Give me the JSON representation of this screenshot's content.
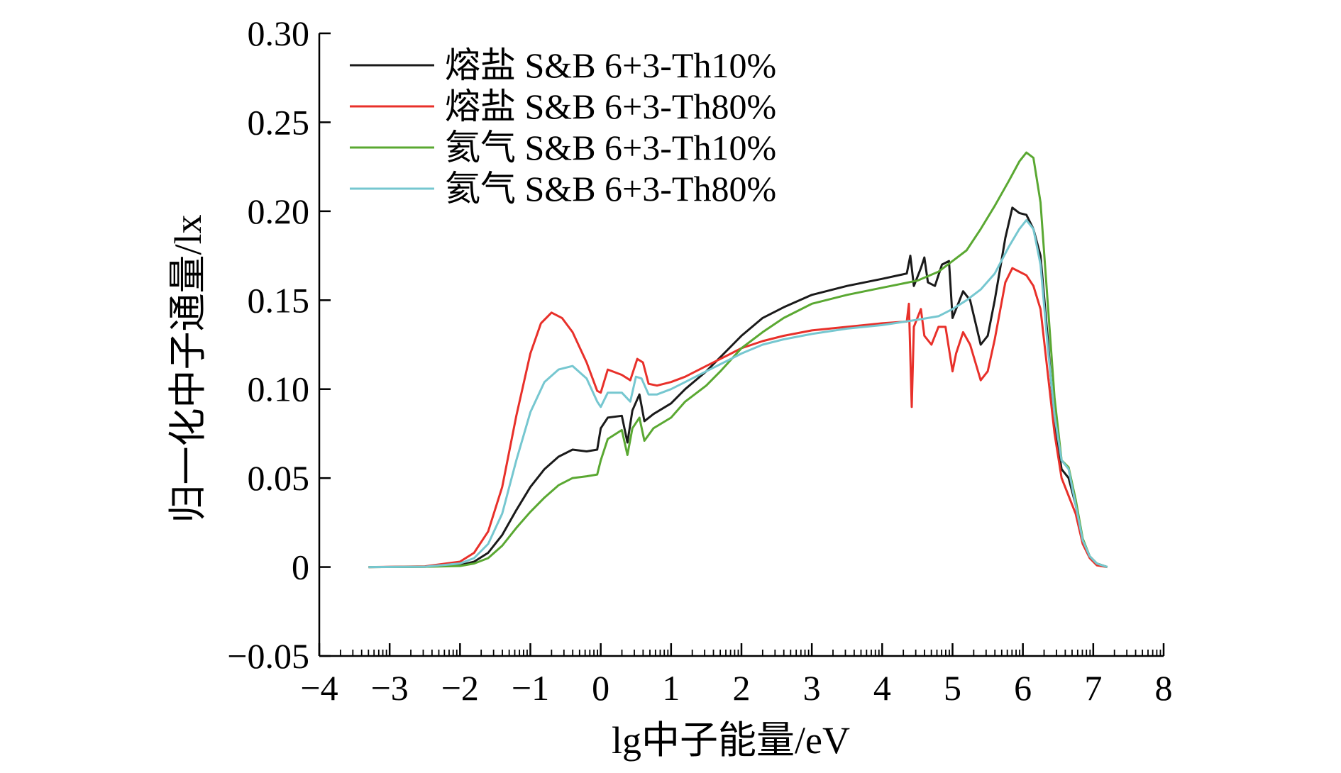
{
  "chart_data": {
    "type": "line",
    "title": "",
    "xlabel": "lg中子能量/eV",
    "ylabel": "归一化中子通量/lx",
    "xlim": [
      -4,
      8
    ],
    "ylim": [
      -0.05,
      0.3
    ],
    "xticks": [
      -4,
      -3,
      -2,
      -1,
      0,
      1,
      2,
      3,
      4,
      5,
      6,
      7,
      8
    ],
    "xtick_labels": [
      "−4",
      "−3",
      "−2",
      "−1",
      "0",
      "1",
      "2",
      "3",
      "4",
      "5",
      "6",
      "7",
      "8"
    ],
    "yticks": [
      -0.05,
      0,
      0.05,
      0.1,
      0.15,
      0.2,
      0.25,
      0.3
    ],
    "ytick_labels": [
      "−0.05",
      "0",
      "0.05",
      "0.10",
      "0.15",
      "0.20",
      "0.25",
      "0.30"
    ],
    "grid": false,
    "legend_position": "top-left",
    "series": [
      {
        "name": "熔盐 S&B 6+3-Th10%",
        "color": "#1a1a1a",
        "points": [
          [
            -3.3,
            0
          ],
          [
            -2.5,
            0.0002
          ],
          [
            -2.0,
            0.001
          ],
          [
            -1.8,
            0.003
          ],
          [
            -1.6,
            0.008
          ],
          [
            -1.4,
            0.018
          ],
          [
            -1.2,
            0.032
          ],
          [
            -1.0,
            0.045
          ],
          [
            -0.8,
            0.055
          ],
          [
            -0.6,
            0.062
          ],
          [
            -0.4,
            0.066
          ],
          [
            -0.2,
            0.065
          ],
          [
            -0.05,
            0.066
          ],
          [
            0.0,
            0.078
          ],
          [
            0.1,
            0.084
          ],
          [
            0.3,
            0.085
          ],
          [
            0.38,
            0.07
          ],
          [
            0.45,
            0.088
          ],
          [
            0.55,
            0.097
          ],
          [
            0.62,
            0.082
          ],
          [
            0.75,
            0.086
          ],
          [
            1.0,
            0.092
          ],
          [
            1.2,
            0.1
          ],
          [
            1.5,
            0.11
          ],
          [
            1.7,
            0.118
          ],
          [
            2.0,
            0.13
          ],
          [
            2.3,
            0.14
          ],
          [
            2.6,
            0.146
          ],
          [
            3.0,
            0.153
          ],
          [
            3.5,
            0.158
          ],
          [
            4.0,
            0.162
          ],
          [
            4.35,
            0.165
          ],
          [
            4.4,
            0.175
          ],
          [
            4.45,
            0.158
          ],
          [
            4.55,
            0.168
          ],
          [
            4.6,
            0.174
          ],
          [
            4.65,
            0.16
          ],
          [
            4.75,
            0.158
          ],
          [
            4.85,
            0.17
          ],
          [
            4.95,
            0.172
          ],
          [
            5.0,
            0.14
          ],
          [
            5.05,
            0.145
          ],
          [
            5.15,
            0.155
          ],
          [
            5.25,
            0.15
          ],
          [
            5.4,
            0.125
          ],
          [
            5.5,
            0.13
          ],
          [
            5.6,
            0.15
          ],
          [
            5.75,
            0.185
          ],
          [
            5.85,
            0.202
          ],
          [
            5.95,
            0.199
          ],
          [
            6.05,
            0.198
          ],
          [
            6.15,
            0.19
          ],
          [
            6.25,
            0.175
          ],
          [
            6.35,
            0.13
          ],
          [
            6.45,
            0.08
          ],
          [
            6.55,
            0.055
          ],
          [
            6.65,
            0.05
          ],
          [
            6.75,
            0.035
          ],
          [
            6.85,
            0.015
          ],
          [
            6.95,
            0.006
          ],
          [
            7.05,
            0.002
          ],
          [
            7.2,
            0
          ]
        ]
      },
      {
        "name": "熔盐 S&B 6+3-Th80%",
        "color": "#e8302a",
        "points": [
          [
            -3.3,
            0
          ],
          [
            -2.5,
            0.0004
          ],
          [
            -2.0,
            0.003
          ],
          [
            -1.8,
            0.008
          ],
          [
            -1.6,
            0.02
          ],
          [
            -1.4,
            0.045
          ],
          [
            -1.2,
            0.085
          ],
          [
            -1.0,
            0.12
          ],
          [
            -0.85,
            0.137
          ],
          [
            -0.7,
            0.143
          ],
          [
            -0.55,
            0.14
          ],
          [
            -0.4,
            0.132
          ],
          [
            -0.2,
            0.115
          ],
          [
            -0.05,
            0.099
          ],
          [
            0.0,
            0.098
          ],
          [
            0.1,
            0.111
          ],
          [
            0.3,
            0.108
          ],
          [
            0.42,
            0.105
          ],
          [
            0.52,
            0.117
          ],
          [
            0.6,
            0.115
          ],
          [
            0.68,
            0.103
          ],
          [
            0.8,
            0.102
          ],
          [
            1.0,
            0.104
          ],
          [
            1.2,
            0.107
          ],
          [
            1.5,
            0.113
          ],
          [
            1.8,
            0.119
          ],
          [
            2.0,
            0.123
          ],
          [
            2.3,
            0.127
          ],
          [
            2.6,
            0.13
          ],
          [
            3.0,
            0.133
          ],
          [
            3.5,
            0.135
          ],
          [
            4.0,
            0.137
          ],
          [
            4.35,
            0.138
          ],
          [
            4.38,
            0.148
          ],
          [
            4.42,
            0.09
          ],
          [
            4.45,
            0.135
          ],
          [
            4.55,
            0.145
          ],
          [
            4.6,
            0.13
          ],
          [
            4.7,
            0.125
          ],
          [
            4.8,
            0.135
          ],
          [
            4.9,
            0.135
          ],
          [
            5.0,
            0.11
          ],
          [
            5.05,
            0.12
          ],
          [
            5.15,
            0.132
          ],
          [
            5.25,
            0.125
          ],
          [
            5.4,
            0.105
          ],
          [
            5.5,
            0.11
          ],
          [
            5.6,
            0.128
          ],
          [
            5.75,
            0.16
          ],
          [
            5.85,
            0.168
          ],
          [
            5.95,
            0.166
          ],
          [
            6.05,
            0.164
          ],
          [
            6.15,
            0.158
          ],
          [
            6.25,
            0.145
          ],
          [
            6.35,
            0.11
          ],
          [
            6.45,
            0.075
          ],
          [
            6.55,
            0.05
          ],
          [
            6.65,
            0.04
          ],
          [
            6.75,
            0.03
          ],
          [
            6.85,
            0.013
          ],
          [
            6.95,
            0.005
          ],
          [
            7.05,
            0.001
          ],
          [
            7.2,
            0
          ]
        ]
      },
      {
        "name": "氦气 S&B 6+3-Th10%",
        "color": "#5aa832",
        "points": [
          [
            -3.3,
            0
          ],
          [
            -2.5,
            0.0001
          ],
          [
            -2.0,
            0.0006
          ],
          [
            -1.8,
            0.002
          ],
          [
            -1.6,
            0.005
          ],
          [
            -1.4,
            0.012
          ],
          [
            -1.2,
            0.022
          ],
          [
            -1.0,
            0.031
          ],
          [
            -0.8,
            0.039
          ],
          [
            -0.6,
            0.046
          ],
          [
            -0.4,
            0.05
          ],
          [
            -0.2,
            0.051
          ],
          [
            -0.05,
            0.052
          ],
          [
            0.0,
            0.06
          ],
          [
            0.1,
            0.072
          ],
          [
            0.3,
            0.077
          ],
          [
            0.38,
            0.063
          ],
          [
            0.45,
            0.078
          ],
          [
            0.55,
            0.084
          ],
          [
            0.62,
            0.071
          ],
          [
            0.75,
            0.078
          ],
          [
            1.0,
            0.084
          ],
          [
            1.2,
            0.093
          ],
          [
            1.5,
            0.102
          ],
          [
            1.7,
            0.11
          ],
          [
            2.0,
            0.123
          ],
          [
            2.3,
            0.132
          ],
          [
            2.6,
            0.14
          ],
          [
            3.0,
            0.148
          ],
          [
            3.5,
            0.153
          ],
          [
            4.0,
            0.157
          ],
          [
            4.5,
            0.161
          ],
          [
            4.8,
            0.166
          ],
          [
            5.0,
            0.172
          ],
          [
            5.2,
            0.178
          ],
          [
            5.4,
            0.19
          ],
          [
            5.6,
            0.203
          ],
          [
            5.8,
            0.217
          ],
          [
            5.95,
            0.228
          ],
          [
            6.05,
            0.233
          ],
          [
            6.15,
            0.23
          ],
          [
            6.25,
            0.205
          ],
          [
            6.35,
            0.15
          ],
          [
            6.45,
            0.095
          ],
          [
            6.55,
            0.06
          ],
          [
            6.65,
            0.056
          ],
          [
            6.75,
            0.038
          ],
          [
            6.85,
            0.016
          ],
          [
            6.95,
            0.006
          ],
          [
            7.05,
            0.002
          ],
          [
            7.2,
            0
          ]
        ]
      },
      {
        "name": "氦气 S&B 6+3-Th80%",
        "color": "#76c7d0",
        "points": [
          [
            -3.3,
            0
          ],
          [
            -2.5,
            0.0002
          ],
          [
            -2.0,
            0.002
          ],
          [
            -1.8,
            0.005
          ],
          [
            -1.6,
            0.013
          ],
          [
            -1.4,
            0.03
          ],
          [
            -1.2,
            0.06
          ],
          [
            -1.0,
            0.087
          ],
          [
            -0.8,
            0.104
          ],
          [
            -0.6,
            0.111
          ],
          [
            -0.4,
            0.113
          ],
          [
            -0.2,
            0.106
          ],
          [
            -0.05,
            0.093
          ],
          [
            0.0,
            0.09
          ],
          [
            0.1,
            0.098
          ],
          [
            0.3,
            0.098
          ],
          [
            0.42,
            0.093
          ],
          [
            0.5,
            0.107
          ],
          [
            0.58,
            0.106
          ],
          [
            0.68,
            0.097
          ],
          [
            0.8,
            0.097
          ],
          [
            1.0,
            0.1
          ],
          [
            1.2,
            0.104
          ],
          [
            1.5,
            0.11
          ],
          [
            1.8,
            0.116
          ],
          [
            2.0,
            0.12
          ],
          [
            2.3,
            0.125
          ],
          [
            2.6,
            0.128
          ],
          [
            3.0,
            0.131
          ],
          [
            3.5,
            0.134
          ],
          [
            4.0,
            0.136
          ],
          [
            4.5,
            0.139
          ],
          [
            4.8,
            0.141
          ],
          [
            5.0,
            0.145
          ],
          [
            5.2,
            0.15
          ],
          [
            5.4,
            0.156
          ],
          [
            5.6,
            0.165
          ],
          [
            5.8,
            0.18
          ],
          [
            5.95,
            0.19
          ],
          [
            6.05,
            0.195
          ],
          [
            6.15,
            0.19
          ],
          [
            6.25,
            0.17
          ],
          [
            6.35,
            0.125
          ],
          [
            6.45,
            0.085
          ],
          [
            6.55,
            0.06
          ],
          [
            6.65,
            0.055
          ],
          [
            6.75,
            0.035
          ],
          [
            6.85,
            0.015
          ],
          [
            6.95,
            0.006
          ],
          [
            7.05,
            0.002
          ],
          [
            7.2,
            0
          ]
        ]
      }
    ]
  }
}
